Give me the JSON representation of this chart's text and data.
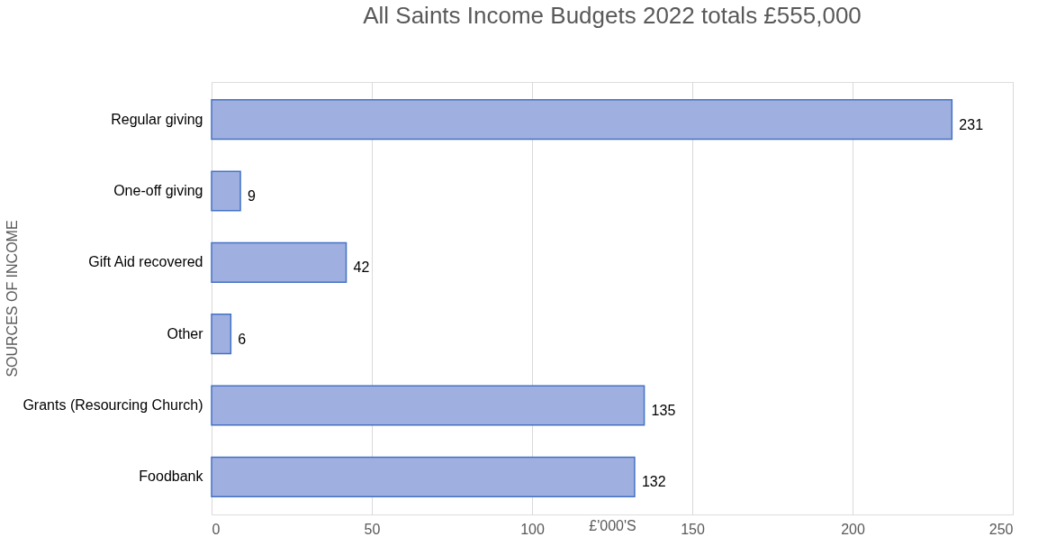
{
  "chart_data": {
    "type": "bar",
    "orientation": "horizontal",
    "title": "All Saints Income Budgets 2022 totals £555,000",
    "xlabel": "£'000'S",
    "ylabel": "SOURCES OF INCOME",
    "categories": [
      "Regular giving",
      "One-off giving",
      "Gift Aid recovered",
      "Other",
      "Grants (Resourcing Church)",
      "Foodbank"
    ],
    "values": [
      231,
      9,
      42,
      6,
      135,
      132
    ],
    "color": "#9fb0e0",
    "xlim": [
      0,
      250
    ],
    "xticks": [
      0,
      50,
      100,
      150,
      200,
      250
    ],
    "grid": "x",
    "data_labels": true
  }
}
